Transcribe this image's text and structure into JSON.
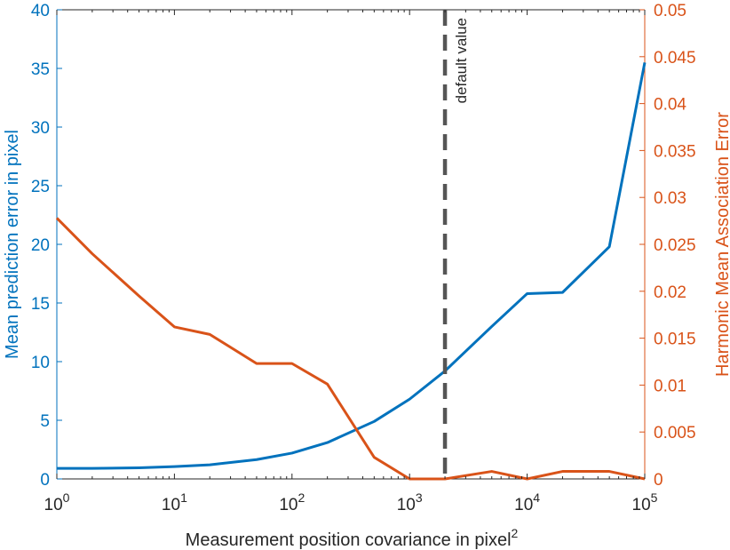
{
  "chart_data": {
    "type": "line",
    "xscale": "log",
    "xlim": [
      1,
      100000
    ],
    "xticks": [
      {
        "base": "10",
        "exp": "0",
        "value": 1
      },
      {
        "base": "10",
        "exp": "1",
        "value": 10
      },
      {
        "base": "10",
        "exp": "2",
        "value": 100
      },
      {
        "base": "10",
        "exp": "3",
        "value": 1000
      },
      {
        "base": "10",
        "exp": "4",
        "value": 10000
      },
      {
        "base": "10",
        "exp": "5",
        "value": 100000
      }
    ],
    "xlabel": {
      "text": "Measurement position covariance in pixel",
      "sup": "2"
    },
    "y_left": {
      "label": "Mean prediction error in pixel",
      "lim": [
        0,
        40
      ],
      "ticks": [
        "0",
        "5",
        "10",
        "15",
        "20",
        "25",
        "30",
        "35",
        "40"
      ],
      "color": "#0072BD"
    },
    "y_right": {
      "label": "Harmonic Mean Association Error",
      "lim": [
        0,
        0.05
      ],
      "ticks": [
        "0",
        "0.005",
        "0.01",
        "0.015",
        "0.02",
        "0.025",
        "0.03",
        "0.035",
        "0.04",
        "0.045",
        "0.05"
      ],
      "color": "#D95319"
    },
    "series": [
      {
        "axis": "left",
        "color": "#0072BD",
        "x": [
          1,
          2,
          5,
          10,
          20,
          50,
          100,
          200,
          500,
          1000,
          2000,
          5000,
          10000,
          20000,
          50000,
          100000
        ],
        "y": [
          0.9,
          0.9,
          0.95,
          1.05,
          1.2,
          1.65,
          2.2,
          3.1,
          4.9,
          6.8,
          9.2,
          13.0,
          15.8,
          15.9,
          19.8,
          35.5
        ]
      },
      {
        "axis": "right",
        "color": "#D95319",
        "x": [
          1,
          2,
          5,
          10,
          20,
          50,
          100,
          200,
          500,
          1000,
          2000,
          5000,
          10000,
          20000,
          50000,
          100000
        ],
        "y": [
          0.0278,
          0.024,
          0.0195,
          0.0162,
          0.0154,
          0.0123,
          0.0123,
          0.0101,
          0.0023,
          0.0,
          0.0,
          0.0008,
          0.0,
          0.0008,
          0.0008,
          0.0
        ]
      }
    ],
    "annotation": {
      "x": 2000,
      "label": "default value",
      "color": "#555555",
      "style": "dashed"
    },
    "grid": false,
    "legend": "none"
  }
}
